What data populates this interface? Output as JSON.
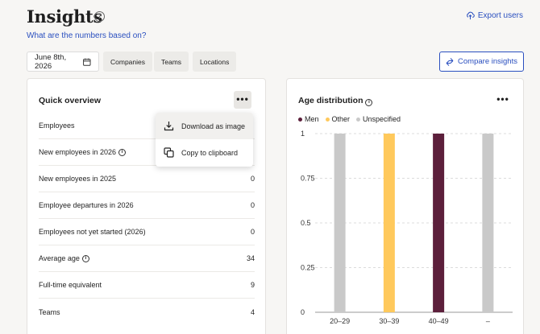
{
  "header": {
    "title": "Insights",
    "help_glyph": "?",
    "export_label": "Export users",
    "numbers_link": "What are the numbers based on?"
  },
  "filters": {
    "date": "June 8th, 2026",
    "companies": "Companies",
    "teams": "Teams",
    "locations": "Locations",
    "compare_label": "Compare insights"
  },
  "overview": {
    "title": "Quick overview",
    "kebab": "•••",
    "rows": [
      {
        "label": "Employees",
        "value": "",
        "info": false
      },
      {
        "label": "New employees in 2026",
        "value": "",
        "info": true
      },
      {
        "label": "New employees in 2025",
        "value": "0",
        "info": false
      },
      {
        "label": "Employee departures in 2026",
        "value": "0",
        "info": false
      },
      {
        "label": "Employees not yet started (2026)",
        "value": "0",
        "info": false
      },
      {
        "label": "Average age",
        "value": "34",
        "info": true
      },
      {
        "label": "Full-time equivalent",
        "value": "9",
        "info": false
      },
      {
        "label": "Teams",
        "value": "4",
        "info": false
      }
    ]
  },
  "menu": {
    "download_label": "Download as image",
    "copy_label": "Copy to clipboard"
  },
  "age": {
    "title": "Age distribution",
    "kebab": "•••",
    "legend": [
      {
        "label": "Men",
        "color": "#5c1f3b"
      },
      {
        "label": "Other",
        "color": "#ffc95c"
      },
      {
        "label": "Unspecified",
        "color": "#c9c9c9"
      }
    ]
  },
  "chart_data": {
    "type": "bar",
    "categories": [
      "20–29",
      "30–39",
      "40–49",
      "–"
    ],
    "series": [
      {
        "name": "Men",
        "color": "#5c1f3b",
        "values": [
          0,
          0,
          1,
          0
        ]
      },
      {
        "name": "Other",
        "color": "#ffc95c",
        "values": [
          0,
          1,
          0,
          0
        ]
      },
      {
        "name": "Unspecified",
        "color": "#c9c9c9",
        "values": [
          1,
          0,
          0,
          1
        ]
      }
    ],
    "yticks": [
      "0",
      "0.25",
      "0.5",
      "0.75",
      "1"
    ],
    "ylim": [
      0,
      1
    ],
    "grid": true,
    "legend_position": "top-left"
  }
}
